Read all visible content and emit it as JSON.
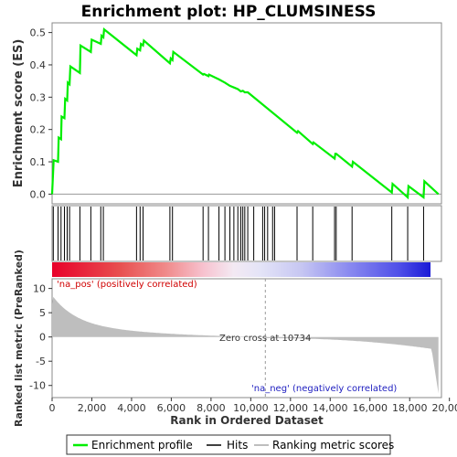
{
  "title": "Enrichment plot: HP_CLUMSINESS",
  "colors": {
    "es_line": "#00ee00",
    "hits": "#000000",
    "metric_fill": "#bebebe",
    "pos_text": "#d00000",
    "neg_text": "#2020c0"
  },
  "chart_data": {
    "type": "line",
    "xlabel": "Rank in Ordered Dataset",
    "es_panel": {
      "ylabel": "Enrichment score (ES)",
      "ylim": [
        -0.03,
        0.53
      ],
      "yticks": [
        "0.0",
        "0.1",
        "0.2",
        "0.3",
        "0.4",
        "0.5"
      ],
      "ytick_values": [
        0,
        0.1,
        0.2,
        0.3,
        0.4,
        0.5
      ],
      "series": [
        {
          "name": "Enrichment profile",
          "x": [
            0,
            60,
            80,
            300,
            330,
            450,
            480,
            620,
            660,
            760,
            790,
            880,
            920,
            1400,
            1430,
            1950,
            1990,
            2450,
            2490,
            2580,
            2620,
            4250,
            4290,
            4430,
            4470,
            4580,
            4620,
            5930,
            5970,
            6060,
            6100,
            7600,
            7640,
            7870,
            7900,
            8400,
            8700,
            8950,
            9150,
            9350,
            9500,
            9600,
            9700,
            9850,
            12330,
            12380,
            13120,
            13160,
            14220,
            14260,
            14300,
            15100,
            15140,
            17100,
            17140,
            17900,
            17940,
            18700,
            18740,
            19450
          ],
          "values": [
            0.0,
            0.08,
            0.105,
            0.1,
            0.175,
            0.17,
            0.24,
            0.235,
            0.295,
            0.29,
            0.345,
            0.34,
            0.395,
            0.375,
            0.46,
            0.44,
            0.478,
            0.465,
            0.49,
            0.485,
            0.51,
            0.43,
            0.45,
            0.445,
            0.465,
            0.46,
            0.475,
            0.405,
            0.42,
            0.415,
            0.44,
            0.37,
            0.372,
            0.365,
            0.37,
            0.355,
            0.345,
            0.335,
            0.33,
            0.325,
            0.318,
            0.32,
            0.315,
            0.315,
            0.19,
            0.195,
            0.155,
            0.16,
            0.11,
            0.125,
            0.125,
            0.085,
            0.1,
            0.005,
            0.032,
            -0.01,
            0.025,
            -0.01,
            0.04,
            0.0
          ]
        }
      ]
    },
    "hits": [
      60,
      300,
      450,
      620,
      760,
      880,
      1400,
      1950,
      2450,
      2580,
      4250,
      4430,
      4580,
      5930,
      6060,
      7600,
      7870,
      8400,
      8700,
      8950,
      9150,
      9350,
      9500,
      9600,
      9700,
      9850,
      10150,
      10600,
      10700,
      10850,
      11100,
      11200,
      12330,
      13120,
      14220,
      14300,
      15100,
      17100,
      17900,
      18700
    ],
    "metric_panel": {
      "ylabel": "Ranked list metric (PreRanked)",
      "ylim": [
        -12.5,
        12
      ],
      "yticks": [
        "10",
        "5",
        "0",
        "-5",
        "-10"
      ],
      "ytick_values": [
        10,
        5,
        0,
        -5,
        -10
      ],
      "zero_cross": 10734,
      "zero_cross_label": "Zero cross at 10734",
      "pos_label": "'na_pos' (positively correlated)",
      "neg_label": "'na_neg' (negatively correlated)"
    },
    "xlim": [
      0,
      19600
    ],
    "xticks": [
      "0",
      "2,000",
      "4,000",
      "6,000",
      "8,000",
      "10,000",
      "12,000",
      "14,000",
      "16,000",
      "18,000",
      "20,000"
    ],
    "xtick_values": [
      0,
      2000,
      4000,
      6000,
      8000,
      10000,
      12000,
      14000,
      16000,
      18000,
      20000
    ]
  },
  "legend": {
    "items": [
      {
        "label": "Enrichment profile"
      },
      {
        "label": "Hits"
      },
      {
        "label": "Ranking metric scores"
      }
    ]
  }
}
